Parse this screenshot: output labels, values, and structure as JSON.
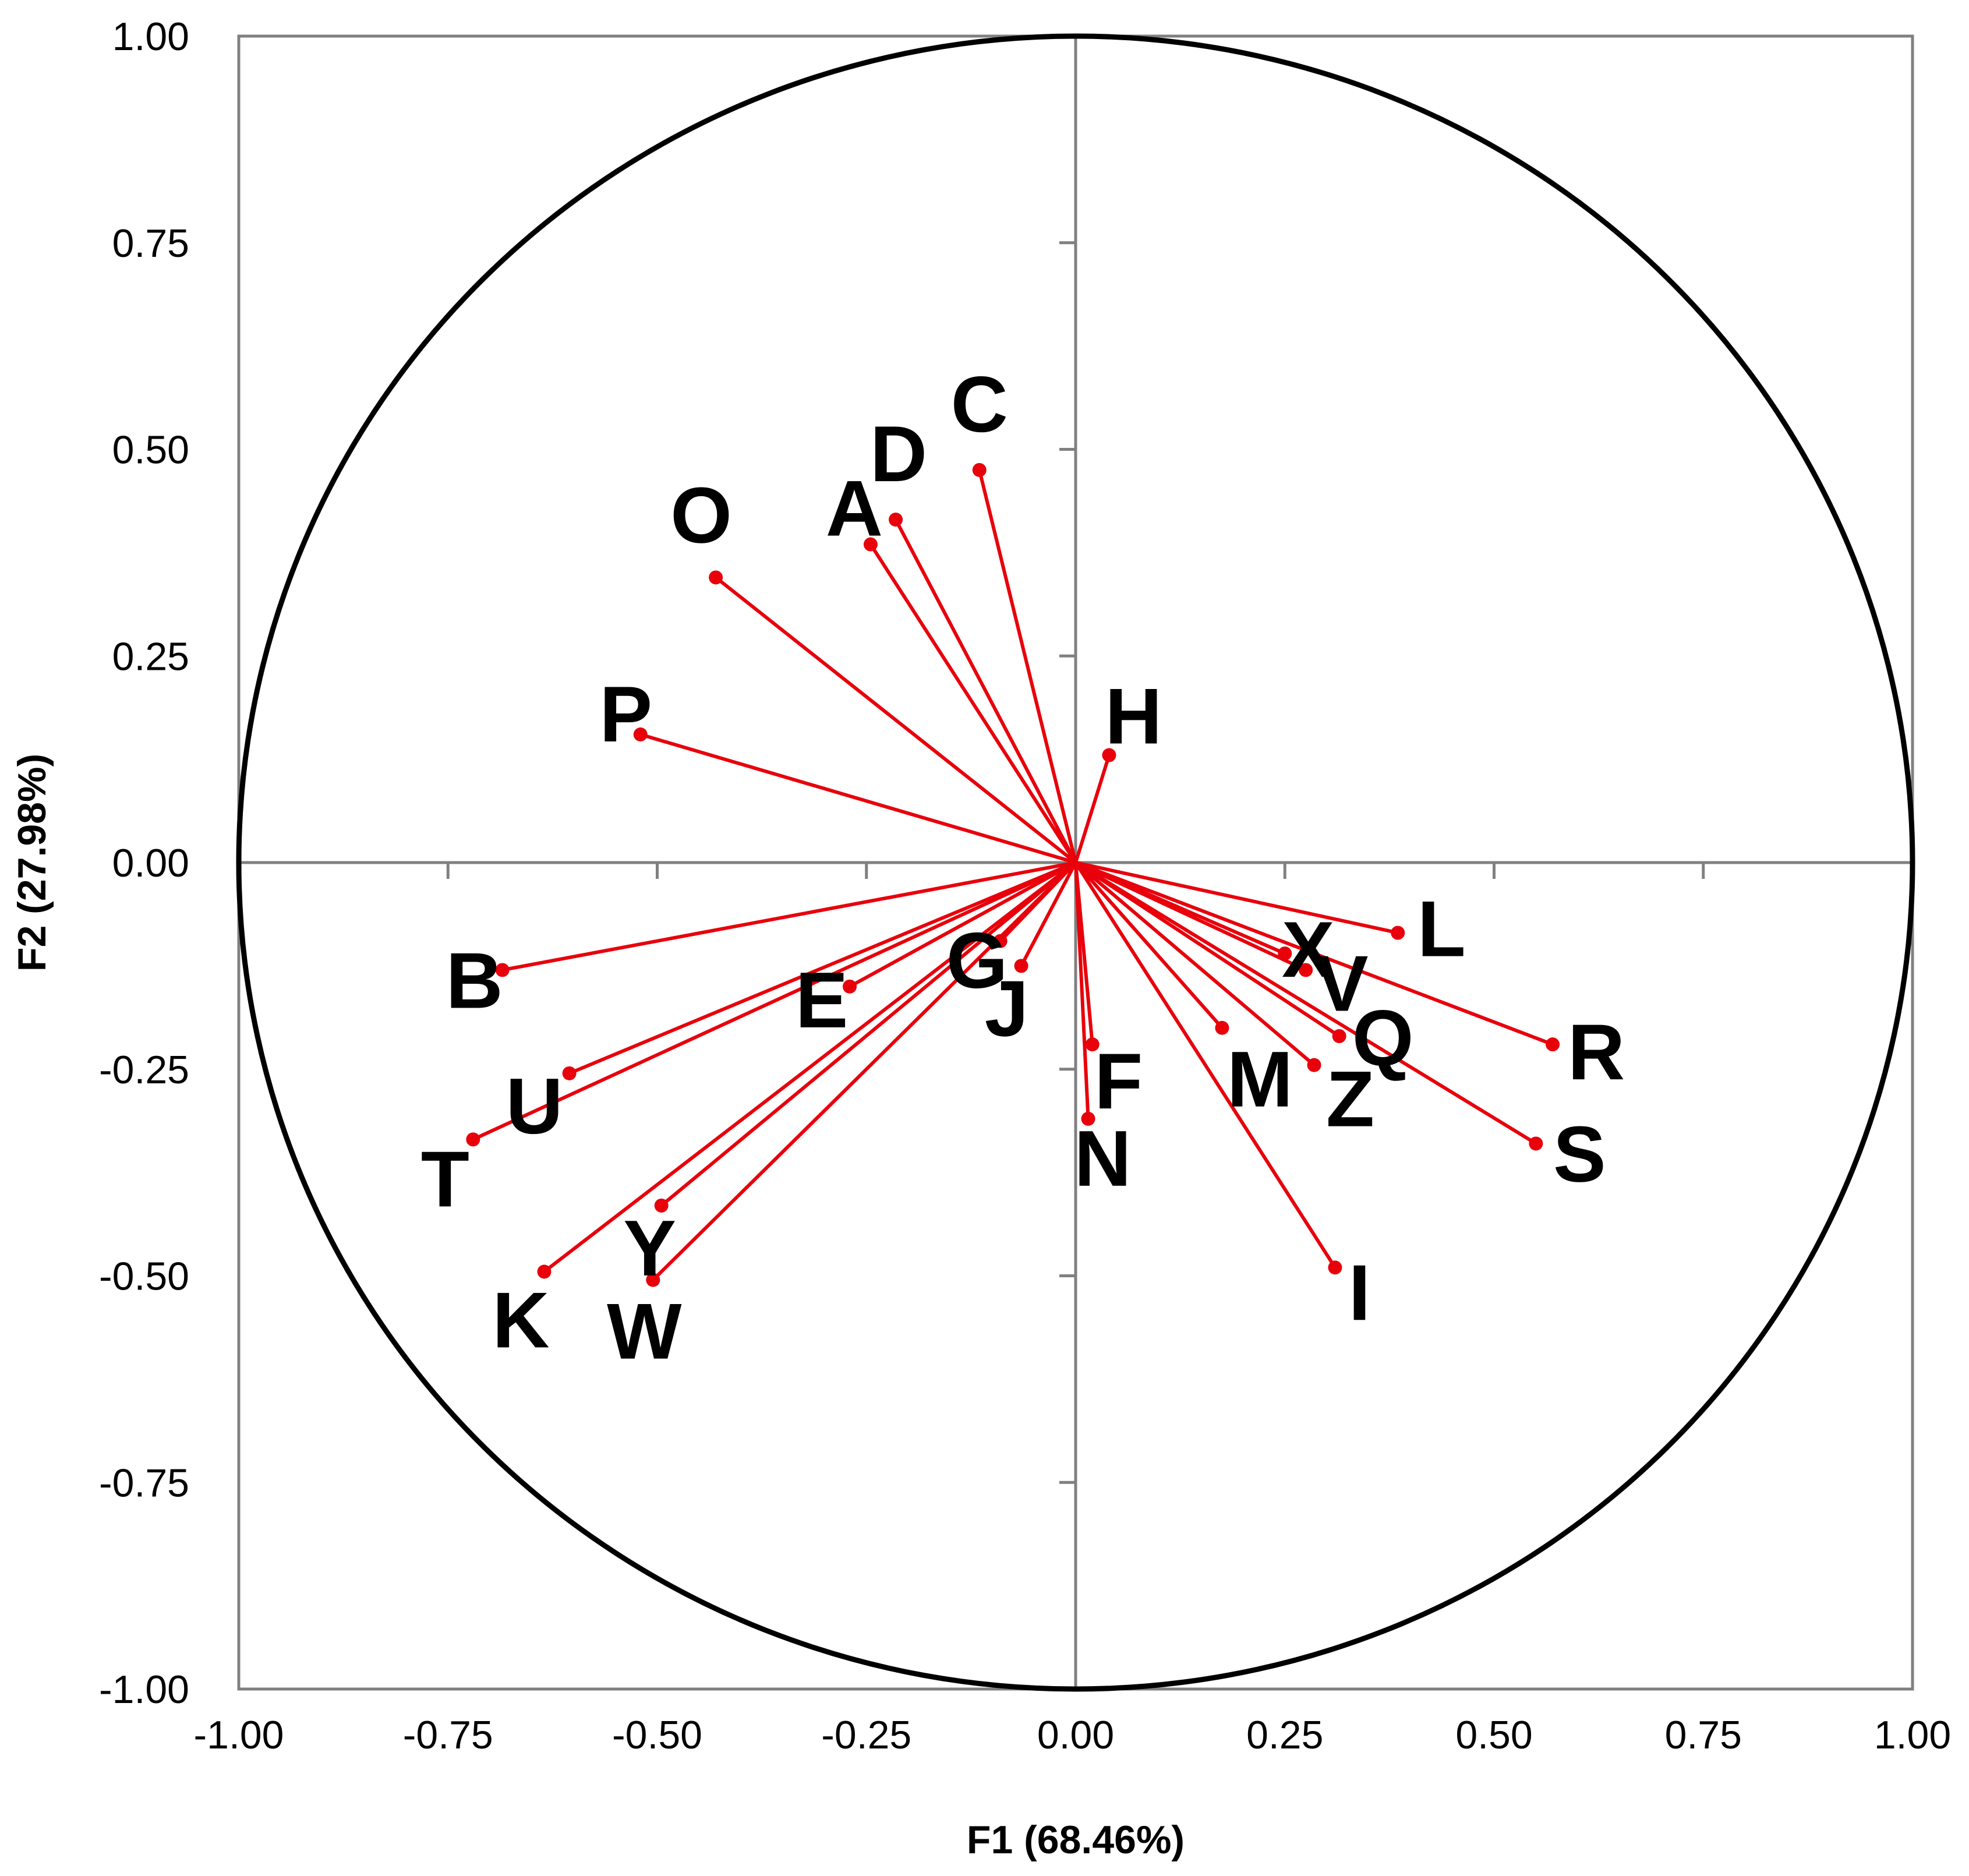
{
  "chart_data": {
    "type": "scatter",
    "subtype": "correlation-circle",
    "title": "",
    "xlabel": "F1 (68.46%)",
    "ylabel": "F2 (27.98%)",
    "xlim": [
      -1.0,
      1.0
    ],
    "ylim": [
      -1.0,
      1.0
    ],
    "x_ticks": [
      "-1.00",
      "-0.75",
      "-0.50",
      "-0.25",
      "0.00",
      "0.25",
      "0.50",
      "0.75",
      "1.00"
    ],
    "y_ticks": [
      "1.00",
      "0.75",
      "0.50",
      "0.25",
      "0.00",
      "-0.25",
      "-0.50",
      "-0.75",
      "-1.00"
    ],
    "grid": false,
    "unit_circle": true,
    "vector_color": "#e8000b",
    "circle_color": "#000000",
    "axis_color": "#808080",
    "points": [
      {
        "label": "A",
        "x": -0.245,
        "y": 0.385
      },
      {
        "label": "B",
        "x": -0.685,
        "y": -0.13
      },
      {
        "label": "C",
        "x": -0.115,
        "y": 0.475
      },
      {
        "label": "D",
        "x": -0.215,
        "y": 0.415
      },
      {
        "label": "E",
        "x": -0.27,
        "y": -0.15
      },
      {
        "label": "F",
        "x": 0.02,
        "y": -0.22
      },
      {
        "label": "G",
        "x": -0.09,
        "y": -0.095
      },
      {
        "label": "H",
        "x": 0.04,
        "y": 0.13
      },
      {
        "label": "I",
        "x": 0.31,
        "y": -0.49
      },
      {
        "label": "J",
        "x": -0.065,
        "y": -0.125
      },
      {
        "label": "K",
        "x": -0.635,
        "y": -0.495
      },
      {
        "label": "L",
        "x": 0.385,
        "y": -0.085
      },
      {
        "label": "M",
        "x": 0.175,
        "y": -0.2
      },
      {
        "label": "N",
        "x": 0.015,
        "y": -0.31
      },
      {
        "label": "O",
        "x": -0.43,
        "y": 0.345
      },
      {
        "label": "P",
        "x": -0.52,
        "y": 0.155
      },
      {
        "label": "Q",
        "x": 0.315,
        "y": -0.21
      },
      {
        "label": "R",
        "x": 0.57,
        "y": -0.22
      },
      {
        "label": "S",
        "x": 0.55,
        "y": -0.34
      },
      {
        "label": "T",
        "x": -0.72,
        "y": -0.335
      },
      {
        "label": "U",
        "x": -0.605,
        "y": -0.255
      },
      {
        "label": "V",
        "x": 0.275,
        "y": -0.13
      },
      {
        "label": "W",
        "x": -0.505,
        "y": -0.505
      },
      {
        "label": "X",
        "x": 0.25,
        "y": -0.11
      },
      {
        "label": "Y",
        "x": -0.495,
        "y": -0.415
      },
      {
        "label": "Z",
        "x": 0.285,
        "y": -0.245
      }
    ]
  }
}
